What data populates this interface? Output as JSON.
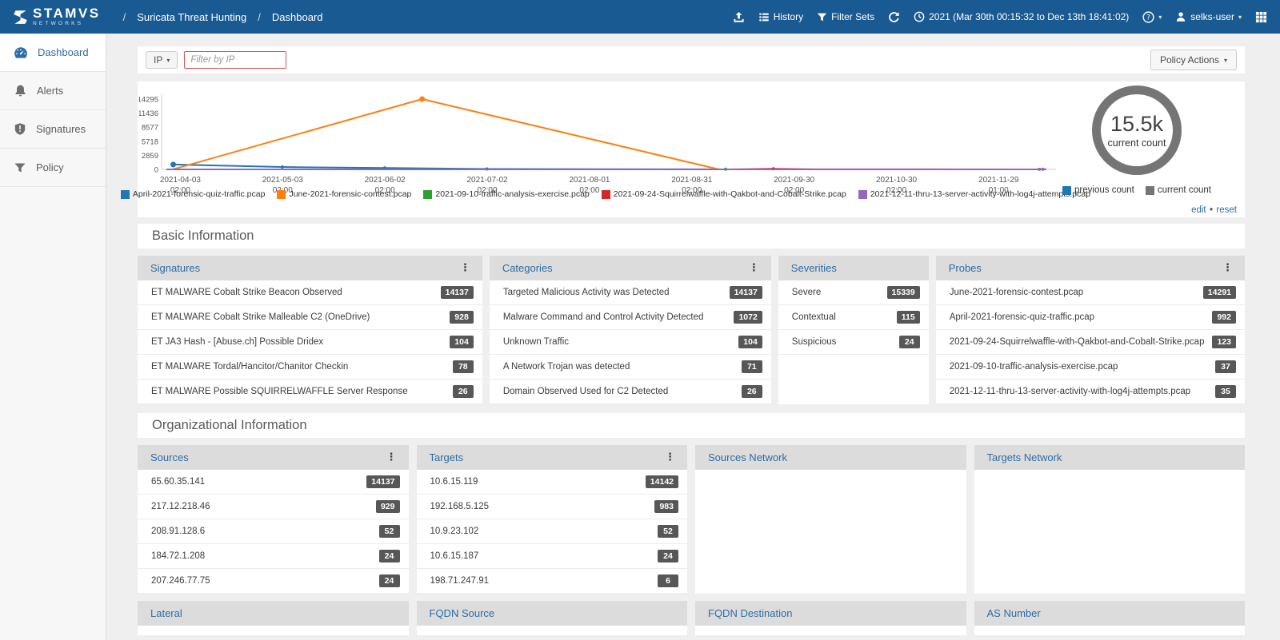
{
  "navbar": {
    "brand": "STAMVS",
    "brand_sub": "NETWORKS",
    "breadcrumb_sep": "/",
    "breadcrumb": [
      "Suricata Threat Hunting",
      "Dashboard"
    ],
    "history_label": "History",
    "filter_sets_label": "Filter Sets",
    "time_range": "2021 (Mar 30th 00:15:32 to Dec 13th 18:41:02)",
    "user_label": "selks-user"
  },
  "sidebar": {
    "items": [
      {
        "label": "Dashboard",
        "icon": "gauge-icon",
        "state": "active"
      },
      {
        "label": "Alerts",
        "icon": "bell-icon",
        "state": ""
      },
      {
        "label": "Signatures",
        "icon": "shield-icon",
        "state": ""
      },
      {
        "label": "Policy",
        "icon": "funnel-icon",
        "state": ""
      }
    ]
  },
  "filter_bar": {
    "type_selector": "IP",
    "placeholder": "Filter by IP",
    "policy_actions_label": "Policy Actions"
  },
  "chart_card": {
    "gauge": {
      "value": "15.5k",
      "label": "current count"
    },
    "gauge_legend": [
      {
        "label": "previous count",
        "color": "#1f77b4"
      },
      {
        "label": "current count",
        "color": "#757575"
      }
    ],
    "edit_label": "edit",
    "reset_label": "reset",
    "separator": "•"
  },
  "chart_data": {
    "type": "line",
    "ylim": [
      0,
      14295
    ],
    "y_ticks": [
      0,
      2859,
      5718,
      8577,
      11436,
      14295
    ],
    "x_range": [
      "2021-03-30",
      "2021-12-14"
    ],
    "x_ticks": [
      {
        "date": "2021-04-03",
        "time": "02:00"
      },
      {
        "date": "2021-05-03",
        "time": "02:00"
      },
      {
        "date": "2021-06-02",
        "time": "02:00"
      },
      {
        "date": "2021-07-02",
        "time": "02:00"
      },
      {
        "date": "2021-08-01",
        "time": "02:00"
      },
      {
        "date": "2021-08-31",
        "time": "02:00"
      },
      {
        "date": "2021-09-30",
        "time": "02:00"
      },
      {
        "date": "2021-10-30",
        "time": "02:00"
      },
      {
        "date": "2021-11-29",
        "time": "01:00"
      }
    ],
    "series": [
      {
        "name": "April-2021-forensic-quiz-traffic.pcap",
        "color": "#1f77b4",
        "points": [
          [
            "2021-04-01",
            992
          ],
          [
            "2021-05-03",
            480
          ],
          [
            "2021-06-02",
            280
          ],
          [
            "2021-07-02",
            90
          ],
          [
            "2021-09-12",
            5
          ]
        ]
      },
      {
        "name": "June-2021-forensic-contest.pcap",
        "color": "#ff7f0e",
        "points": [
          [
            "2021-04-01",
            25
          ],
          [
            "2021-06-13",
            14291
          ],
          [
            "2021-09-08",
            10
          ]
        ]
      },
      {
        "name": "2021-09-10-traffic-analysis-exercise.pcap",
        "color": "#2ca02c",
        "points": [
          [
            "2021-09-10",
            37
          ]
        ]
      },
      {
        "name": "2021-09-24-Squirrelwaffle-with-Qakbot-and-Cobalt-Strike.pcap",
        "color": "#d62728",
        "points": [
          [
            "2021-09-11",
            3
          ],
          [
            "2021-09-24",
            123
          ],
          [
            "2021-10-06",
            20
          ],
          [
            "2021-12-13",
            5
          ]
        ]
      },
      {
        "name": "2021-12-11-thru-13-server-activity-with-log4j-attempts.pcap",
        "color": "#9467bd",
        "points": [
          [
            "2021-03-30",
            2
          ],
          [
            "2021-12-10",
            2
          ],
          [
            "2021-12-11",
            30
          ],
          [
            "2021-12-12",
            35
          ],
          [
            "2021-12-13",
            18
          ]
        ]
      }
    ]
  },
  "basic_information": {
    "title": "Basic Information",
    "cards": [
      {
        "title": "Signatures",
        "has_menu": true,
        "rows": [
          {
            "label": "ET MALWARE Cobalt Strike Beacon Observed",
            "value": "14137"
          },
          {
            "label": "ET MALWARE Cobalt Strike Malleable C2 (OneDrive)",
            "value": "928"
          },
          {
            "label": "ET JA3 Hash - [Abuse.ch] Possible Dridex",
            "value": "104"
          },
          {
            "label": "ET MALWARE Tordal/Hancitor/Chanitor Checkin",
            "value": "78"
          },
          {
            "label": "ET MALWARE Possible SQUIRRELWAFFLE Server Response",
            "value": "26"
          }
        ]
      },
      {
        "title": "Categories",
        "has_menu": true,
        "rows": [
          {
            "label": "Targeted Malicious Activity was Detected",
            "value": "14137"
          },
          {
            "label": "Malware Command and Control Activity Detected",
            "value": "1072"
          },
          {
            "label": "Unknown Traffic",
            "value": "104"
          },
          {
            "label": "A Network Trojan was detected",
            "value": "71"
          },
          {
            "label": "Domain Observed Used for C2 Detected",
            "value": "26"
          }
        ]
      },
      {
        "title": "Severities",
        "has_menu": false,
        "rows": [
          {
            "label": "Severe",
            "value": "15339"
          },
          {
            "label": "Contextual",
            "value": "115"
          },
          {
            "label": "Suspicious",
            "value": "24"
          }
        ]
      },
      {
        "title": "Probes",
        "has_menu": true,
        "rows": [
          {
            "label": "June-2021-forensic-contest.pcap",
            "value": "14291"
          },
          {
            "label": "April-2021-forensic-quiz-traffic.pcap",
            "value": "992"
          },
          {
            "label": "2021-09-24-Squirrelwaffle-with-Qakbot-and-Cobalt-Strike.pcap",
            "value": "123"
          },
          {
            "label": "2021-09-10-traffic-analysis-exercise.pcap",
            "value": "37"
          },
          {
            "label": "2021-12-11-thru-13-server-activity-with-log4j-attempts.pcap",
            "value": "35"
          }
        ]
      }
    ]
  },
  "organizational_information": {
    "title": "Organizational Information",
    "cards": [
      {
        "title": "Sources",
        "has_menu": true,
        "rows": [
          {
            "label": "65.60.35.141",
            "value": "14137"
          },
          {
            "label": "217.12.218.46",
            "value": "929"
          },
          {
            "label": "208.91.128.6",
            "value": "52"
          },
          {
            "label": "184.72.1.208",
            "value": "24"
          },
          {
            "label": "207.246.77.75",
            "value": "24"
          }
        ]
      },
      {
        "title": "Targets",
        "has_menu": true,
        "rows": [
          {
            "label": "10.6.15.119",
            "value": "14142"
          },
          {
            "label": "192.168.5.125",
            "value": "983"
          },
          {
            "label": "10.9.23.102",
            "value": "52"
          },
          {
            "label": "10.6.15.187",
            "value": "24"
          },
          {
            "label": "198.71.247.91",
            "value": "6"
          }
        ]
      },
      {
        "title": "Sources Network",
        "has_menu": false,
        "rows": []
      },
      {
        "title": "Targets Network",
        "has_menu": false,
        "rows": []
      }
    ],
    "bottom_cards": [
      "Lateral",
      "FQDN Source",
      "FQDN Destination",
      "AS Number"
    ]
  }
}
